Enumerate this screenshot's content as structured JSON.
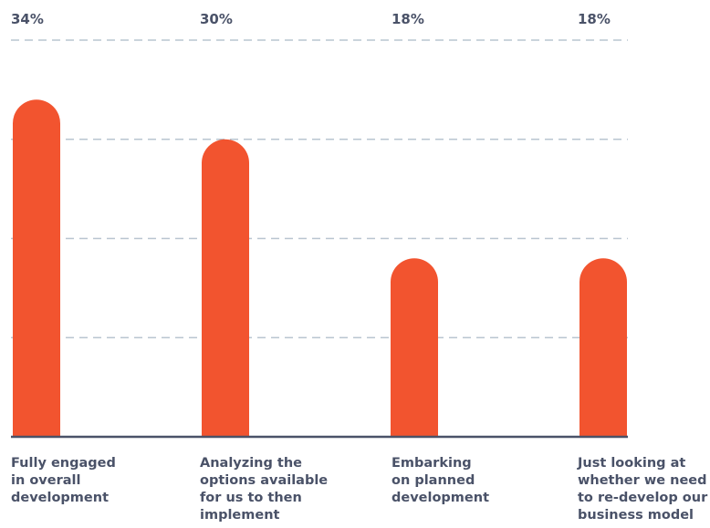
{
  "chart_data": {
    "type": "bar",
    "categories": [
      "Fully engaged\nin overall\ndevelopment",
      "Analyzing the\noptions available\nfor us to then\nimplement",
      "Embarking\non planned\ndevelopment",
      "Just looking at\nwhether we need\nto re-develop our\nbusiness model"
    ],
    "values": [
      34,
      30,
      18,
      18
    ],
    "value_labels": [
      "34%",
      "30%",
      "18%",
      "18%"
    ],
    "ylim": [
      0,
      40
    ],
    "grid": true,
    "bar_color": "#f2542f",
    "grid_color": "#b9c5d0",
    "axis_color": "#4a5268",
    "text_color": "#4a5268"
  }
}
